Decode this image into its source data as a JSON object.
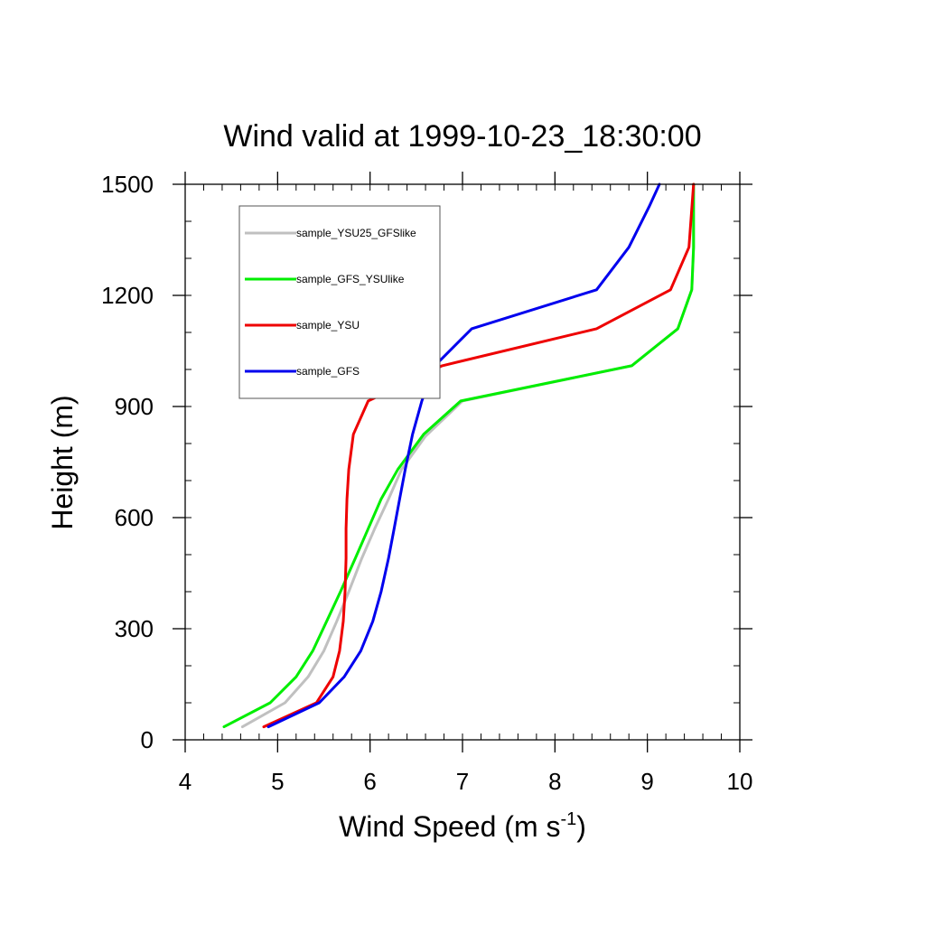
{
  "chart_data": {
    "type": "line",
    "title": "Wind valid at 1999-10-23_18:30:00",
    "xlabel": "Wind Speed (m s",
    "xlabel_sup": "-1",
    "xlabel_close": ")",
    "ylabel": "Height (m)",
    "xlim": [
      4,
      10
    ],
    "ylim": [
      0,
      1500
    ],
    "x_ticks": [
      "4",
      "5",
      "6",
      "7",
      "8",
      "9",
      "10"
    ],
    "y_ticks": [
      "0",
      "300",
      "600",
      "900",
      "1200",
      "1500"
    ],
    "legend_position": "top-left",
    "series": [
      {
        "name": "sample_YSU25_GFSlike",
        "color": "#c0c0c0",
        "points": [
          [
            4.62,
            35
          ],
          [
            5.08,
            100
          ],
          [
            5.33,
            170
          ],
          [
            5.5,
            240
          ],
          [
            5.64,
            320
          ],
          [
            5.77,
            400
          ],
          [
            5.91,
            490
          ],
          [
            6.05,
            570
          ],
          [
            6.2,
            650
          ],
          [
            6.34,
            730
          ],
          [
            6.6,
            820
          ],
          [
            7.0,
            915
          ],
          [
            8.83,
            1010
          ],
          [
            9.33,
            1110
          ],
          [
            9.48,
            1215
          ],
          [
            9.5,
            1330
          ],
          [
            9.5,
            1500
          ]
        ]
      },
      {
        "name": "sample_GFS_YSUlike",
        "color": "#00ee00",
        "points": [
          [
            4.42,
            35
          ],
          [
            4.92,
            100
          ],
          [
            5.2,
            170
          ],
          [
            5.38,
            240
          ],
          [
            5.53,
            320
          ],
          [
            5.68,
            400
          ],
          [
            5.84,
            490
          ],
          [
            5.98,
            570
          ],
          [
            6.12,
            650
          ],
          [
            6.3,
            730
          ],
          [
            6.58,
            825
          ],
          [
            6.98,
            915
          ],
          [
            8.83,
            1010
          ],
          [
            9.33,
            1110
          ],
          [
            9.48,
            1215
          ],
          [
            9.5,
            1330
          ],
          [
            9.5,
            1500
          ]
        ]
      },
      {
        "name": "sample_YSU",
        "color": "#ee0000",
        "points": [
          [
            4.85,
            35
          ],
          [
            5.42,
            100
          ],
          [
            5.6,
            170
          ],
          [
            5.67,
            240
          ],
          [
            5.71,
            320
          ],
          [
            5.73,
            400
          ],
          [
            5.74,
            490
          ],
          [
            5.74,
            570
          ],
          [
            5.75,
            650
          ],
          [
            5.77,
            730
          ],
          [
            5.82,
            825
          ],
          [
            5.98,
            915
          ],
          [
            6.78,
            1010
          ],
          [
            8.45,
            1110
          ],
          [
            9.25,
            1215
          ],
          [
            9.45,
            1330
          ],
          [
            9.5,
            1500
          ]
        ]
      },
      {
        "name": "sample_GFS",
        "color": "#0000ee",
        "points": [
          [
            4.9,
            35
          ],
          [
            5.45,
            100
          ],
          [
            5.72,
            170
          ],
          [
            5.9,
            240
          ],
          [
            6.03,
            320
          ],
          [
            6.12,
            400
          ],
          [
            6.2,
            490
          ],
          [
            6.26,
            570
          ],
          [
            6.32,
            650
          ],
          [
            6.38,
            730
          ],
          [
            6.46,
            825
          ],
          [
            6.56,
            915
          ],
          [
            6.7,
            1010
          ],
          [
            7.1,
            1110
          ],
          [
            8.45,
            1215
          ],
          [
            8.8,
            1330
          ],
          [
            9.02,
            1440
          ],
          [
            9.13,
            1500
          ]
        ]
      }
    ]
  }
}
